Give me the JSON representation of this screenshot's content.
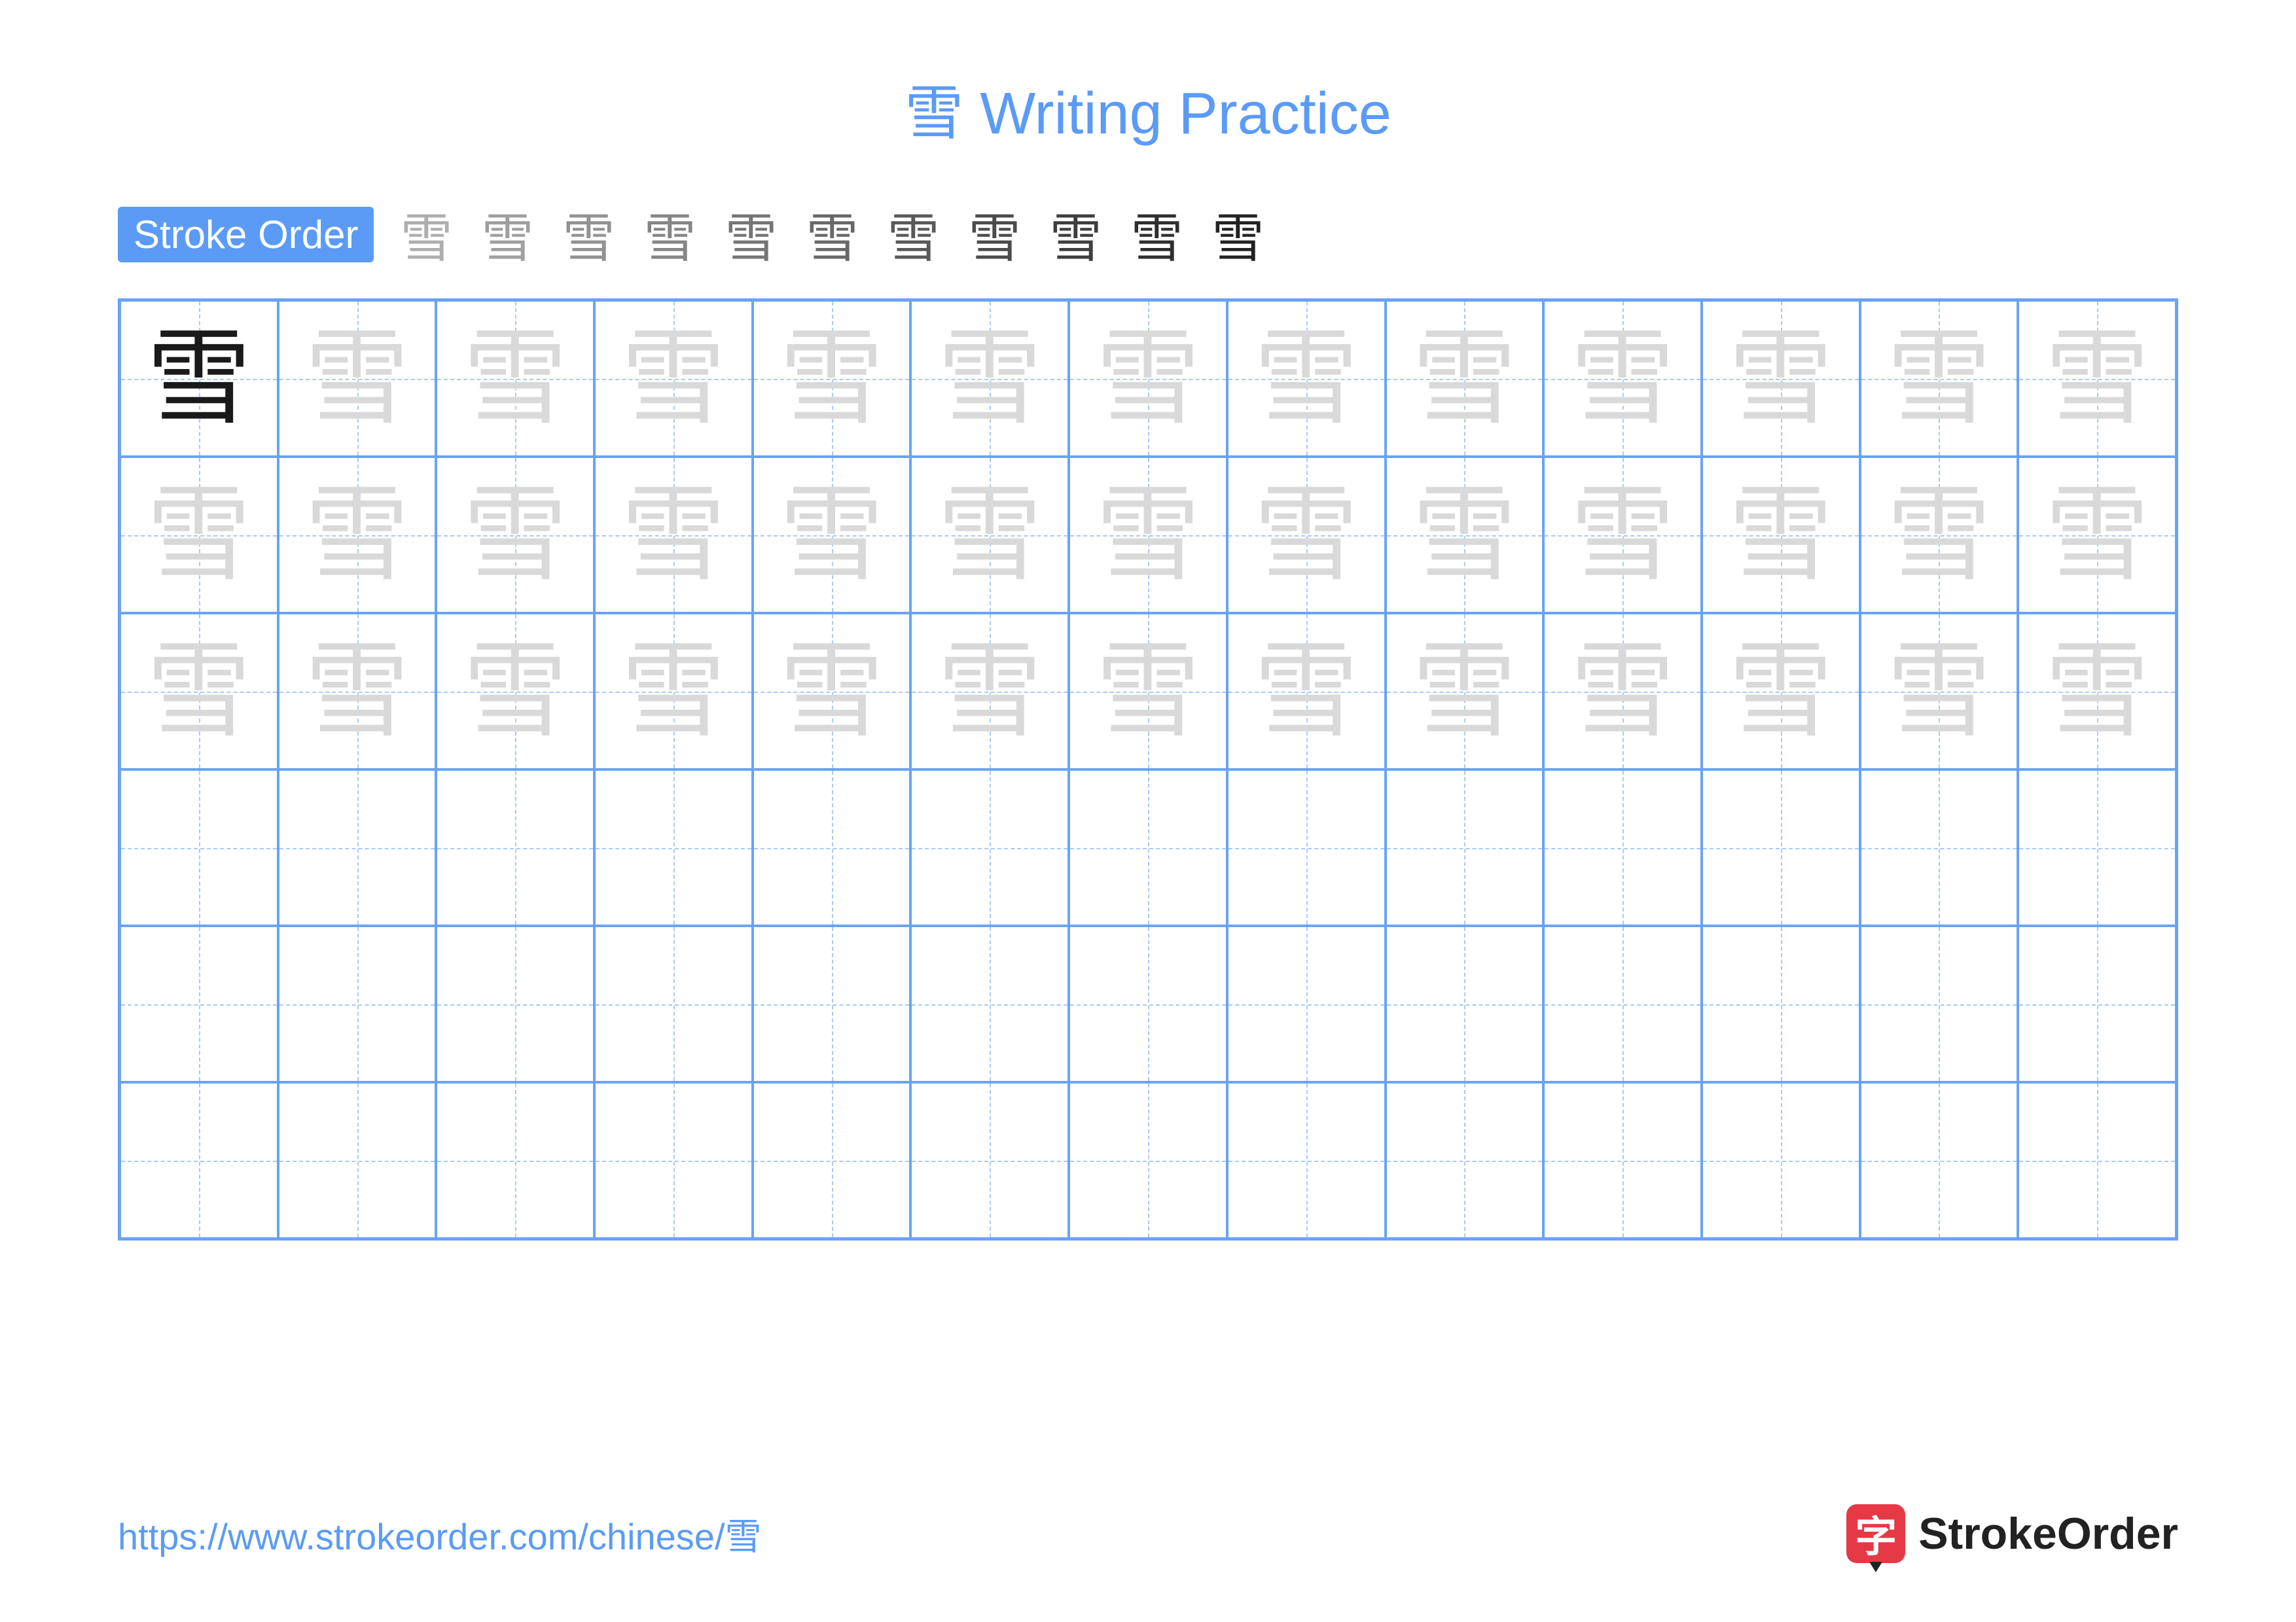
{
  "colors": {
    "accent": "#5b9bf6",
    "grid_border": "#6aa3f5",
    "guide_line": "#a9c9f8",
    "title": "#5b9bf6",
    "url": "#5b9bf6",
    "model_char": "#1a1a1a",
    "trace_char": "#d9d9d9",
    "brand_icon_bg": "#e63946"
  },
  "title": "雪 Writing Practice",
  "stroke_label": "Stroke Order",
  "character": "雪",
  "stroke_count": 11,
  "grid": {
    "cols": 13,
    "rows": 6,
    "trace_rows": 3,
    "cell_font_size": 160
  },
  "footer": {
    "url": "https://www.strokeorder.com/chinese/雪",
    "brand_char": "字",
    "brand_text": "StrokeOrder"
  }
}
